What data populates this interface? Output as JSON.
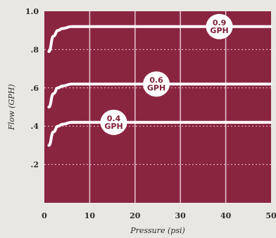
{
  "chart_data": {
    "type": "line",
    "title": "",
    "xlabel": "Pressure (psi)",
    "ylabel": "Flow (GPH)",
    "xlim": [
      0,
      50
    ],
    "ylim": [
      0,
      1.0
    ],
    "x_ticks": [
      0,
      10,
      20,
      30,
      40,
      50
    ],
    "x_tick_labels": [
      "0",
      "10",
      "20",
      "30",
      "40",
      "50"
    ],
    "y_ticks": [
      0.2,
      0.4,
      0.6,
      0.8,
      1.0
    ],
    "y_tick_labels": [
      ".2",
      ".4",
      ".6",
      ".8",
      "1.0"
    ],
    "grid": true,
    "series": [
      {
        "name": "0.9 GPH",
        "label_lines": [
          "0.9",
          "GPH"
        ],
        "label_at": [
          38.6,
          0.92
        ],
        "x": [
          1,
          2,
          3,
          4,
          6,
          8,
          50
        ],
        "y": [
          0.79,
          0.87,
          0.9,
          0.91,
          0.92,
          0.92,
          0.92
        ]
      },
      {
        "name": "0.6 GPH",
        "label_lines": [
          "0.6",
          "GPH"
        ],
        "label_at": [
          24.7,
          0.62
        ],
        "x": [
          1,
          2,
          3,
          4,
          6,
          8,
          50
        ],
        "y": [
          0.5,
          0.57,
          0.6,
          0.61,
          0.62,
          0.62,
          0.62
        ]
      },
      {
        "name": "0.4 GPH",
        "label_lines": [
          "0.4",
          "GPH"
        ],
        "label_at": [
          15.3,
          0.42
        ],
        "x": [
          1,
          2,
          3,
          4,
          6,
          8,
          50
        ],
        "y": [
          0.3,
          0.37,
          0.4,
          0.41,
          0.42,
          0.42,
          0.42
        ]
      }
    ],
    "colors": {
      "plot_bg": "#8a2540",
      "curve": "#ffffff",
      "grid": "#e7c8d0",
      "badge_bg": "#ffffff",
      "badge_text": "#7f2138"
    }
  }
}
